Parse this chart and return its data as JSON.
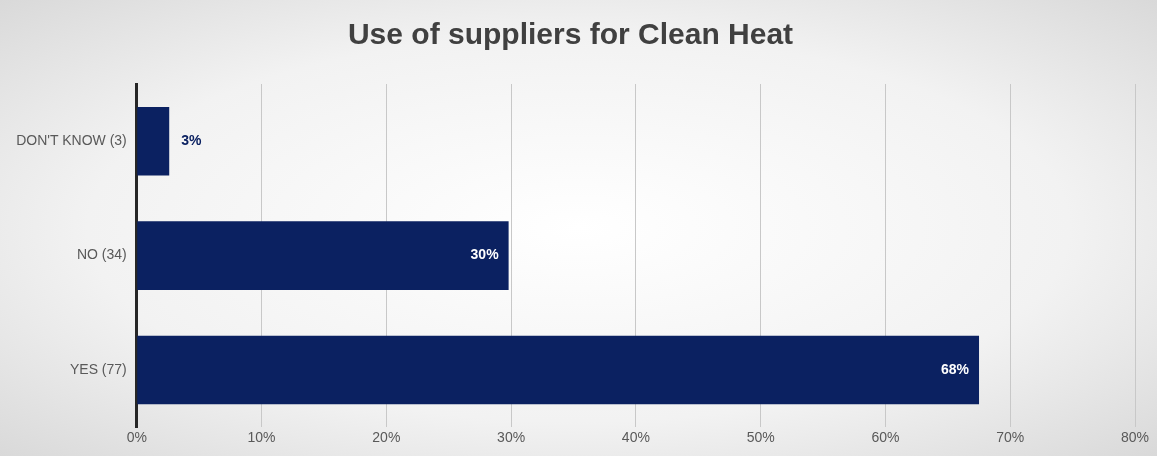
{
  "chart_data": {
    "type": "bar",
    "orientation": "horizontal",
    "title": "Use of suppliers for Clean Heat",
    "categories": [
      "DON'T KNOW (3)",
      "NO (34)",
      "YES (77)"
    ],
    "series": [
      {
        "color": "#0b2161",
        "values": [
          2.6,
          29.8,
          67.5
        ],
        "value_labels": [
          "3%",
          "30%",
          "68%"
        ]
      }
    ],
    "xlim": [
      0,
      80
    ],
    "xticks": [
      {
        "value": 0,
        "label": "0%"
      },
      {
        "value": 10,
        "label": "10%"
      },
      {
        "value": 20,
        "label": "20%"
      },
      {
        "value": 30,
        "label": "30%"
      },
      {
        "value": 40,
        "label": "40%"
      },
      {
        "value": 50,
        "label": "50%"
      },
      {
        "value": 60,
        "label": "60%"
      },
      {
        "value": 70,
        "label": "70%"
      },
      {
        "value": 80,
        "label": "80%"
      }
    ],
    "grid": "x",
    "legend": false
  }
}
